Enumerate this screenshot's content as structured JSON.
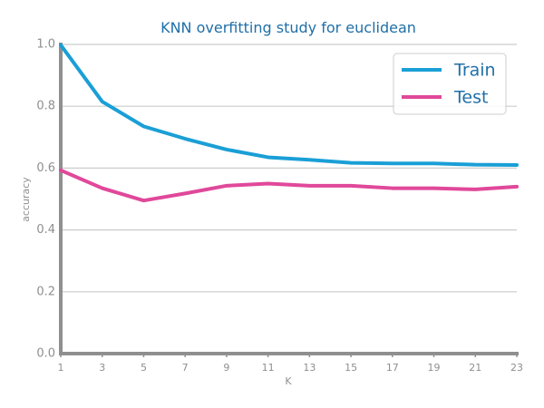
{
  "chart_data": {
    "type": "line",
    "title": "KNN overfitting study for euclidean",
    "xlabel": "K",
    "ylabel": "accuracy",
    "x": [
      1,
      3,
      5,
      7,
      9,
      11,
      13,
      15,
      17,
      19,
      21,
      23
    ],
    "xlim": [
      1,
      23
    ],
    "ylim": [
      0,
      1
    ],
    "yticks": [
      "0.0",
      "0.2",
      "0.4",
      "0.6",
      "0.8",
      "1.0"
    ],
    "xticks": [
      "1",
      "3",
      "5",
      "7",
      "9",
      "11",
      "13",
      "15",
      "17",
      "19",
      "21",
      "23"
    ],
    "grid": "horizontal",
    "legend": "top-right",
    "series": [
      {
        "name": "Train",
        "color": "#1a9fd6",
        "values": [
          0.998,
          0.815,
          0.735,
          0.695,
          0.66,
          0.635,
          0.627,
          0.617,
          0.615,
          0.615,
          0.611,
          0.61
        ]
      },
      {
        "name": "Test",
        "color": "#e0489a",
        "values": [
          0.593,
          0.535,
          0.495,
          0.518,
          0.543,
          0.55,
          0.543,
          0.543,
          0.535,
          0.535,
          0.531,
          0.54
        ]
      }
    ]
  }
}
